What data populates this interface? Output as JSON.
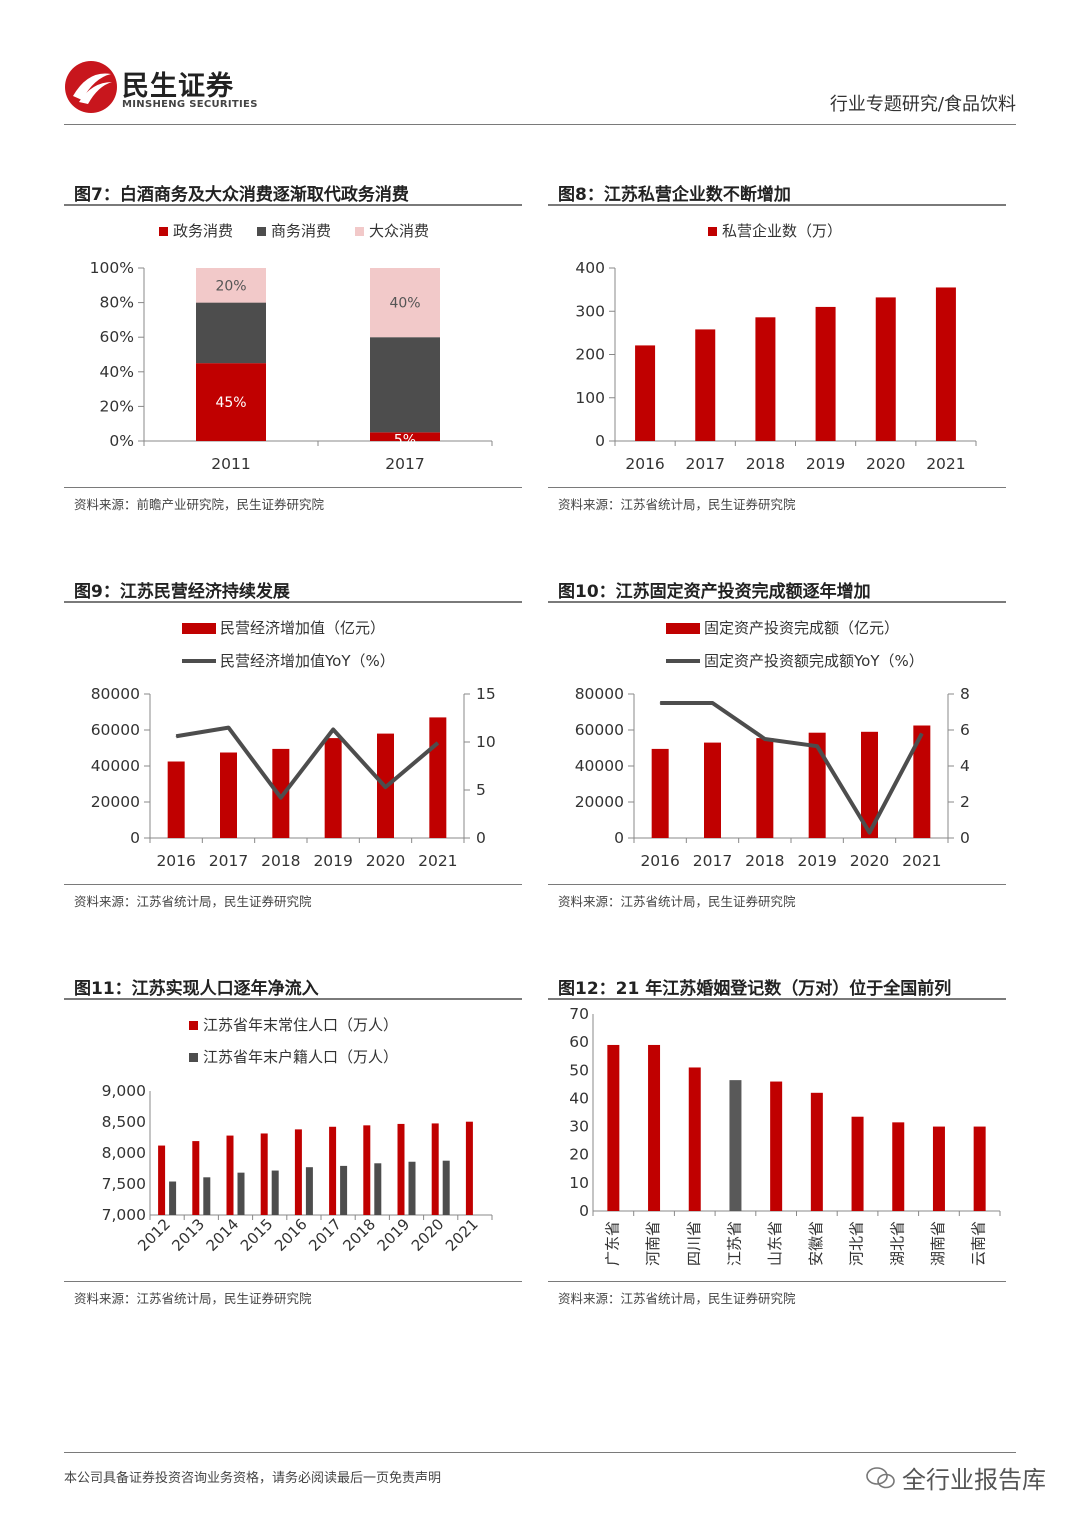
{
  "header": {
    "brand_cn": "民生证券",
    "brand_en": "MINSHENG SECURITIES",
    "doc_type": "行业专题研究/食品饮料"
  },
  "panels": [
    {
      "title": "图7：白酒商务及大众消费逐渐取代政务消费",
      "source": "资料来源：前瞻产业研究院，民生证券研究院"
    },
    {
      "title": "图8：江苏私营企业数不断增加",
      "source": "资料来源：江苏省统计局，民生证券研究院"
    },
    {
      "title": "图9：江苏民营经济持续发展",
      "source": "资料来源：江苏省统计局，民生证券研究院"
    },
    {
      "title": "图10：江苏固定资产投资完成额逐年增加",
      "source": "资料来源：江苏省统计局，民生证券研究院"
    },
    {
      "title": "图11：江苏实现人口逐年净流入",
      "source": "资料来源：江苏省统计局，民生证券研究院"
    },
    {
      "title": "图12：21 年江苏婚姻登记数（万对）位于全国前列",
      "source": "资料来源：江苏省统计局，民生证券研究院"
    }
  ],
  "colors": {
    "red": "#c00000",
    "gray": "#4d4d4d",
    "pink": "#f2c9c9",
    "line": "#4d4d4d",
    "axis": "#888888"
  },
  "chart_data": [
    {
      "type": "bar",
      "stacked": true,
      "percent": true,
      "categories": [
        "2011",
        "2017"
      ],
      "series": [
        {
          "name": "政务消费",
          "values": [
            45,
            5
          ],
          "labels": [
            "45%",
            "5%"
          ],
          "color": "#c00000"
        },
        {
          "name": "商务消费",
          "values": [
            35,
            55
          ],
          "labels": [
            "",
            ""
          ],
          "color": "#4d4d4d"
        },
        {
          "name": "大众消费",
          "values": [
            20,
            40
          ],
          "labels": [
            "20%",
            "40%"
          ],
          "color": "#f2c9c9"
        }
      ],
      "ylim": [
        0,
        100
      ],
      "yticks": [
        "0%",
        "20%",
        "40%",
        "60%",
        "80%",
        "100%"
      ]
    },
    {
      "type": "bar",
      "categories": [
        "2016",
        "2017",
        "2018",
        "2019",
        "2020",
        "2021"
      ],
      "series": [
        {
          "name": "私营企业数（万）",
          "values": [
            221,
            258,
            286,
            310,
            332,
            355
          ],
          "color": "#c00000"
        }
      ],
      "ylim": [
        0,
        400
      ],
      "yticks": [
        "0",
        "100",
        "200",
        "300",
        "400"
      ]
    },
    {
      "type": "bar+line",
      "categories": [
        "2016",
        "2017",
        "2018",
        "2019",
        "2020",
        "2021"
      ],
      "series": [
        {
          "name": "民营经济增加值（亿元）",
          "type": "bar",
          "axis": "left",
          "values": [
            42500,
            47500,
            49500,
            55500,
            58000,
            67000
          ],
          "color": "#c00000"
        },
        {
          "name": "民营经济增加值YoY（%）",
          "type": "line",
          "axis": "right",
          "values": [
            10.6,
            11.5,
            4.2,
            11.3,
            5.3,
            9.9
          ],
          "color": "#4d4d4d"
        }
      ],
      "ylim": [
        0,
        80000
      ],
      "yticks": [
        "0",
        "20000",
        "40000",
        "60000",
        "80000"
      ],
      "y2lim": [
        0,
        15
      ],
      "y2ticks": [
        "0",
        "5",
        "10",
        "15"
      ]
    },
    {
      "type": "bar+line",
      "categories": [
        "2016",
        "2017",
        "2018",
        "2019",
        "2020",
        "2021"
      ],
      "series": [
        {
          "name": "固定资产投资完成额（亿元）",
          "type": "bar",
          "axis": "left",
          "values": [
            49500,
            53000,
            55500,
            58500,
            59000,
            62500
          ],
          "color": "#c00000"
        },
        {
          "name": "固定资产投资额完成额YoY（%）",
          "type": "line",
          "axis": "right",
          "values": [
            7.5,
            7.5,
            5.5,
            5.1,
            0.3,
            5.8
          ],
          "color": "#4d4d4d"
        }
      ],
      "ylim": [
        0,
        80000
      ],
      "yticks": [
        "0",
        "20000",
        "40000",
        "60000",
        "80000"
      ],
      "y2lim": [
        0,
        8
      ],
      "y2ticks": [
        "0",
        "2",
        "4",
        "6",
        "8"
      ]
    },
    {
      "type": "bar",
      "categories": [
        "2012",
        "2013",
        "2014",
        "2015",
        "2016",
        "2017",
        "2018",
        "2019",
        "2020",
        "2021"
      ],
      "series": [
        {
          "name": "江苏省年末常住人口（万人）",
          "values": [
            8120,
            8192,
            8281,
            8315,
            8381,
            8423,
            8446,
            8469,
            8477,
            8505
          ],
          "color": "#c00000"
        },
        {
          "name": "江苏省年末户籍人口（万人）",
          "values": [
            7540,
            7608,
            7683,
            7717,
            7771,
            7792,
            7834,
            7859,
            7876,
            null
          ],
          "color": "#4d4d4d"
        }
      ],
      "ylim": [
        7000,
        9000
      ],
      "yticks": [
        "7,000",
        "7,500",
        "8,000",
        "8,500",
        "9,000"
      ]
    },
    {
      "type": "bar",
      "categories": [
        "广东省",
        "河南省",
        "四川省",
        "江苏省",
        "山东省",
        "安徽省",
        "河北省",
        "湖北省",
        "湖南省",
        "云南省"
      ],
      "series": [
        {
          "name": "婚姻登记数（万对）",
          "values": [
            59,
            59,
            51,
            46.5,
            46,
            42,
            33.5,
            31.5,
            30,
            30
          ],
          "color": "#c00000",
          "highlight_index": 3,
          "highlight_color": "#595959"
        }
      ],
      "ylim": [
        0,
        70
      ],
      "yticks": [
        "0",
        "10",
        "20",
        "30",
        "40",
        "50",
        "60",
        "70"
      ]
    }
  ],
  "footer": {
    "disclaimer": "本公司具备证券投资咨询业务资格，请务必阅读最后一页免责声明",
    "watermark": "全行业报告库"
  }
}
